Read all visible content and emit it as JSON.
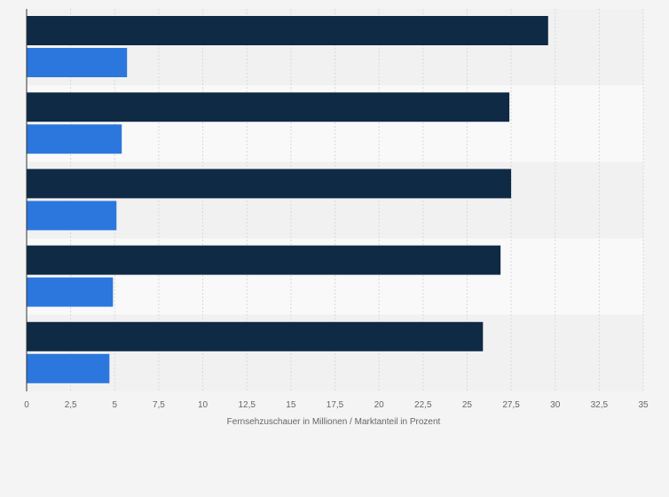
{
  "chart_data": {
    "type": "bar",
    "orientation": "horizontal",
    "categories": [
      "",
      "",
      "",
      "",
      ""
    ],
    "series": [
      {
        "color": "#0f2a44",
        "values": [
          29.6,
          27.4,
          27.5,
          26.9,
          25.9
        ]
      },
      {
        "color": "#2b77dd",
        "values": [
          5.7,
          5.4,
          5.1,
          4.9,
          4.7
        ]
      }
    ],
    "xlabel": "Fernsehzuschauer in Millionen / Marktanteil in Prozent",
    "ylabel": "",
    "xlim": [
      0,
      35
    ],
    "xticks": [
      "0",
      "2,5",
      "5",
      "7,5",
      "10",
      "12,5",
      "15",
      "17,5",
      "20",
      "22,5",
      "25",
      "27,5",
      "30",
      "32,5",
      "35"
    ],
    "grid": true,
    "legend": "none"
  }
}
